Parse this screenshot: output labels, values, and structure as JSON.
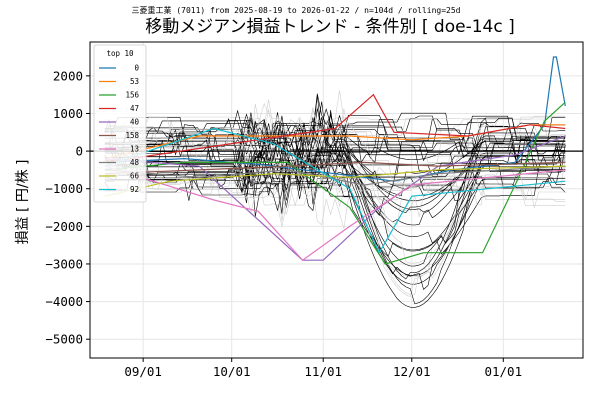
{
  "chart_data": {
    "type": "line",
    "suptitle": "三菱重工業 (7011) from 2025-08-19 to 2026-01-22 / n=104d / rolling=25d",
    "title": "移動メジアン損益トレンド - 条件別 [ doe-14c ]",
    "xlabel": "",
    "ylabel": "損益 [ 円/株 ]",
    "x_start": "2025-08-19",
    "x_end": "2026-01-22",
    "xlim": [
      "2025-08-14",
      "2026-01-28"
    ],
    "ylim": [
      -5500,
      2900
    ],
    "x_ticks": [
      {
        "date": "2025-09-01",
        "label": "09/01"
      },
      {
        "date": "2025-10-01",
        "label": "10/01"
      },
      {
        "date": "2025-11-01",
        "label": "11/01"
      },
      {
        "date": "2025-12-01",
        "label": "12/01"
      },
      {
        "date": "2026-01-01",
        "label": "01/01"
      }
    ],
    "y_ticks": [
      {
        "value": 2000,
        "label": "2000"
      },
      {
        "value": 1000,
        "label": "1000"
      },
      {
        "value": 0,
        "label": "0"
      },
      {
        "value": -1000,
        "label": "−1000"
      },
      {
        "value": -2000,
        "label": "−2000"
      },
      {
        "value": -3000,
        "label": "−3000"
      },
      {
        "value": -4000,
        "label": "−4000"
      },
      {
        "value": -5000,
        "label": "−5000"
      }
    ],
    "grid": true,
    "zero_line": true,
    "legend": {
      "title": "top 10",
      "placement": "top-left",
      "entries": [
        {
          "name": "0",
          "color": "#1f77b4"
        },
        {
          "name": "53",
          "color": "#ff7f0e"
        },
        {
          "name": "156",
          "color": "#2ca02c"
        },
        {
          "name": "47",
          "color": "#d62728"
        },
        {
          "name": "40",
          "color": "#9467bd"
        },
        {
          "name": "158",
          "color": "#8c564b"
        },
        {
          "name": "13",
          "color": "#e377c2"
        },
        {
          "name": "48",
          "color": "#7f7f7f"
        },
        {
          "name": "66",
          "color": "#bcbd22"
        },
        {
          "name": "92",
          "color": "#17becf"
        }
      ]
    },
    "series": [
      {
        "name": "0",
        "color": "#1f77b4",
        "points": [
          [
            "2025-08-19",
            -300
          ],
          [
            "2025-09-15",
            -200
          ],
          [
            "2025-10-10",
            -350
          ],
          [
            "2025-11-05",
            -600
          ],
          [
            "2025-11-25",
            -800
          ],
          [
            "2025-12-15",
            -500
          ],
          [
            "2026-01-05",
            -300
          ],
          [
            "2026-01-15",
            700
          ],
          [
            "2026-01-18",
            2500
          ],
          [
            "2026-01-19",
            2500
          ],
          [
            "2026-01-22",
            1200
          ]
        ]
      },
      {
        "name": "53",
        "color": "#ff7f0e",
        "points": [
          [
            "2025-08-19",
            -200
          ],
          [
            "2025-09-20",
            400
          ],
          [
            "2025-10-20",
            400
          ],
          [
            "2025-11-10",
            400
          ],
          [
            "2025-12-01",
            300
          ],
          [
            "2025-12-20",
            400
          ],
          [
            "2026-01-10",
            700
          ],
          [
            "2026-01-22",
            700
          ]
        ]
      },
      {
        "name": "156",
        "color": "#2ca02c",
        "points": [
          [
            "2025-08-19",
            -500
          ],
          [
            "2025-09-15",
            -300
          ],
          [
            "2025-10-20",
            -300
          ],
          [
            "2025-11-10",
            -1500
          ],
          [
            "2025-11-22",
            -3000
          ],
          [
            "2025-12-05",
            -2700
          ],
          [
            "2025-12-25",
            -2700
          ],
          [
            "2026-01-05",
            -900
          ],
          [
            "2026-01-15",
            800
          ],
          [
            "2026-01-22",
            1300
          ]
        ]
      },
      {
        "name": "47",
        "color": "#d62728",
        "points": [
          [
            "2025-08-19",
            -300
          ],
          [
            "2025-10-01",
            200
          ],
          [
            "2025-11-05",
            600
          ],
          [
            "2025-11-18",
            1500
          ],
          [
            "2025-11-25",
            500
          ],
          [
            "2025-12-20",
            400
          ],
          [
            "2026-01-10",
            700
          ],
          [
            "2026-01-22",
            600
          ]
        ]
      },
      {
        "name": "40",
        "color": "#9467bd",
        "points": [
          [
            "2025-08-19",
            -200
          ],
          [
            "2025-09-20",
            -400
          ],
          [
            "2025-10-25",
            -2900
          ],
          [
            "2025-11-01",
            -2900
          ],
          [
            "2025-11-20",
            -1500
          ],
          [
            "2025-12-10",
            -400
          ],
          [
            "2026-01-05",
            -100
          ],
          [
            "2026-01-22",
            400
          ]
        ]
      },
      {
        "name": "158",
        "color": "#8c564b",
        "points": [
          [
            "2025-08-19",
            -600
          ],
          [
            "2025-09-20",
            -500
          ],
          [
            "2025-10-20",
            -400
          ],
          [
            "2025-11-15",
            -300
          ],
          [
            "2025-12-10",
            -400
          ],
          [
            "2026-01-22",
            -300
          ]
        ]
      },
      {
        "name": "13",
        "color": "#e377c2",
        "points": [
          [
            "2025-08-19",
            -400
          ],
          [
            "2025-09-25",
            -1300
          ],
          [
            "2025-10-10",
            -1600
          ],
          [
            "2025-10-25",
            -2900
          ],
          [
            "2025-11-10",
            -2000
          ],
          [
            "2025-12-01",
            -900
          ],
          [
            "2026-01-22",
            -500
          ]
        ]
      },
      {
        "name": "48",
        "color": "#7f7f7f",
        "points": [
          [
            "2025-08-19",
            -500
          ],
          [
            "2025-09-20",
            -700
          ],
          [
            "2025-10-20",
            -500
          ],
          [
            "2025-11-15",
            -900
          ],
          [
            "2025-12-10",
            -600
          ],
          [
            "2026-01-22",
            -400
          ]
        ]
      },
      {
        "name": "66",
        "color": "#bcbd22",
        "points": [
          [
            "2025-08-19",
            -1200
          ],
          [
            "2025-09-10",
            -800
          ],
          [
            "2025-10-15",
            -600
          ],
          [
            "2025-11-10",
            -700
          ],
          [
            "2025-12-10",
            -500
          ],
          [
            "2026-01-22",
            -400
          ]
        ]
      },
      {
        "name": "92",
        "color": "#17becf",
        "points": [
          [
            "2025-08-19",
            -400
          ],
          [
            "2025-09-25",
            600
          ],
          [
            "2025-10-15",
            200
          ],
          [
            "2025-11-10",
            -1000
          ],
          [
            "2025-11-20",
            -2700
          ],
          [
            "2025-12-01",
            -1200
          ],
          [
            "2026-01-22",
            -800
          ]
        ]
      }
    ]
  }
}
